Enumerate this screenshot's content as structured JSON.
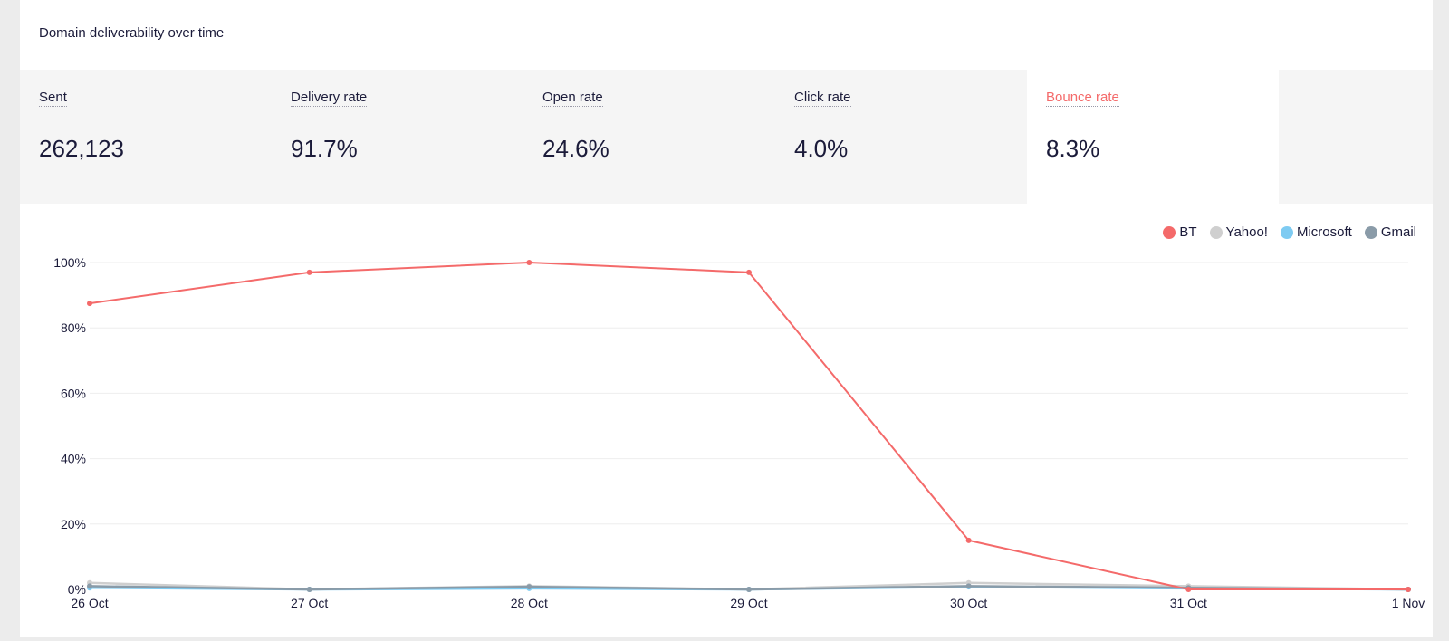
{
  "card_title": "Domain deliverability over time",
  "stats": [
    {
      "label": "Sent",
      "value": "262,123"
    },
    {
      "label": "Delivery rate",
      "value": "91.7%"
    },
    {
      "label": "Open rate",
      "value": "24.6%"
    },
    {
      "label": "Click rate",
      "value": "4.0%"
    },
    {
      "label": "Bounce rate",
      "value": "8.3%",
      "active": true
    }
  ],
  "colors": {
    "accent": "#f46a6a",
    "text": "#1b1b3a"
  },
  "chart_data": {
    "type": "line",
    "x": [
      "26 Oct",
      "27 Oct",
      "28 Oct",
      "29 Oct",
      "30 Oct",
      "31 Oct",
      "1 Nov"
    ],
    "y_ticks": [
      "0%",
      "20%",
      "40%",
      "60%",
      "80%",
      "100%"
    ],
    "ylim": [
      0,
      100
    ],
    "grid": true,
    "legend_position": "top-right",
    "series": [
      {
        "name": "BT",
        "color": "#f46a6a",
        "values": [
          87.5,
          97,
          100,
          97,
          15,
          0,
          0
        ]
      },
      {
        "name": "Yahoo!",
        "color": "#cfcfcf",
        "values": [
          2,
          0,
          1,
          0,
          2,
          1,
          0
        ]
      },
      {
        "name": "Microsoft",
        "color": "#7ecbf2",
        "values": [
          0.5,
          0,
          0.3,
          0,
          0.8,
          0.3,
          0
        ]
      },
      {
        "name": "Gmail",
        "color": "#8a9ba8",
        "values": [
          1,
          0,
          0.8,
          0,
          1,
          0.5,
          0
        ]
      }
    ]
  }
}
